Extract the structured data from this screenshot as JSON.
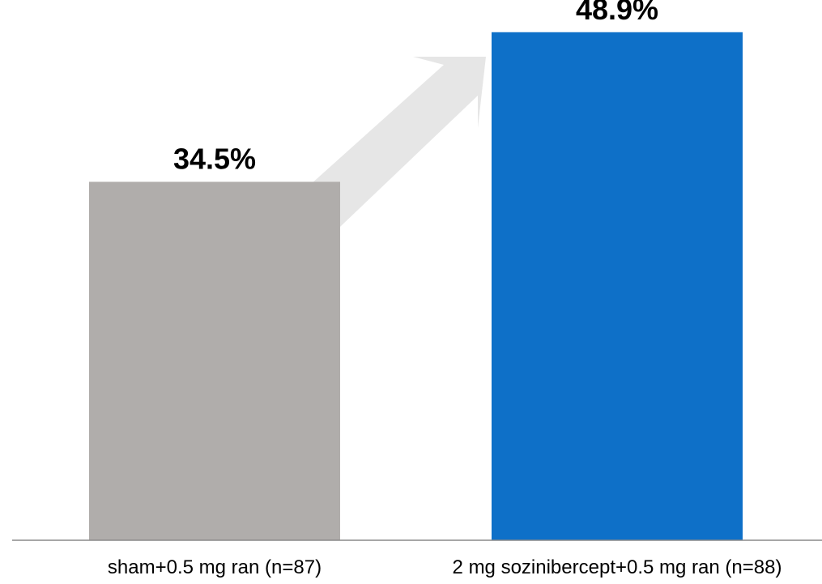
{
  "chart_data": {
    "type": "bar",
    "categories": [
      "sham+0.5 mg ran (n=87)",
      "2 mg sozinibercept+0.5 mg ran (n=88)"
    ],
    "values": [
      34.5,
      48.9
    ],
    "data_labels": [
      "34.5%",
      "48.9%"
    ],
    "colors": [
      "#b0adab",
      "#0e70c8"
    ],
    "arrow_color": "#e6e6e6",
    "axis_color": "#8a8a8a",
    "ylim": [
      0,
      52
    ],
    "title": "",
    "xlabel": "",
    "ylabel": "",
    "grid": false,
    "legend": "none"
  }
}
